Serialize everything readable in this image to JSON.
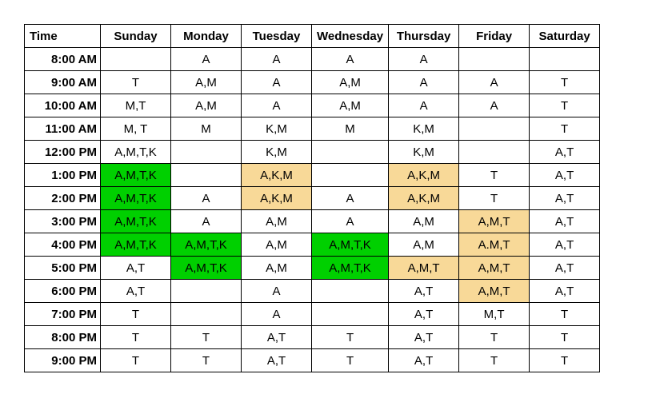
{
  "table": {
    "headers": [
      "Time",
      "Sunday",
      "Monday",
      "Tuesday",
      "Wednesday",
      "Thursday",
      "Friday",
      "Saturday"
    ],
    "colors": {
      "green": "#00d000",
      "tan": "#f8d998",
      "none": "#ffffff"
    },
    "rows": [
      {
        "time": "8:00 AM",
        "cells": [
          {
            "text": "",
            "bg": "none"
          },
          {
            "text": "A",
            "bg": "none"
          },
          {
            "text": "A",
            "bg": "none"
          },
          {
            "text": "A",
            "bg": "none"
          },
          {
            "text": "A",
            "bg": "none"
          },
          {
            "text": "",
            "bg": "none"
          },
          {
            "text": "",
            "bg": "none"
          }
        ]
      },
      {
        "time": "9:00 AM",
        "cells": [
          {
            "text": "T",
            "bg": "none"
          },
          {
            "text": "A,M",
            "bg": "none"
          },
          {
            "text": "A",
            "bg": "none"
          },
          {
            "text": "A,M",
            "bg": "none"
          },
          {
            "text": "A",
            "bg": "none"
          },
          {
            "text": "A",
            "bg": "none"
          },
          {
            "text": "T",
            "bg": "none"
          }
        ]
      },
      {
        "time": "10:00 AM",
        "cells": [
          {
            "text": "M,T",
            "bg": "none"
          },
          {
            "text": "A,M",
            "bg": "none"
          },
          {
            "text": "A",
            "bg": "none"
          },
          {
            "text": "A,M",
            "bg": "none"
          },
          {
            "text": "A",
            "bg": "none"
          },
          {
            "text": "A",
            "bg": "none"
          },
          {
            "text": "T",
            "bg": "none"
          }
        ]
      },
      {
        "time": "11:00 AM",
        "cells": [
          {
            "text": "M, T",
            "bg": "none"
          },
          {
            "text": "M",
            "bg": "none"
          },
          {
            "text": "K,M",
            "bg": "none"
          },
          {
            "text": "M",
            "bg": "none"
          },
          {
            "text": "K,M",
            "bg": "none"
          },
          {
            "text": "",
            "bg": "none"
          },
          {
            "text": "T",
            "bg": "none"
          }
        ]
      },
      {
        "time": "12:00 PM",
        "cells": [
          {
            "text": "A,M,T,K",
            "bg": "none"
          },
          {
            "text": "",
            "bg": "none"
          },
          {
            "text": "K,M",
            "bg": "none"
          },
          {
            "text": "",
            "bg": "none"
          },
          {
            "text": "K,M",
            "bg": "none"
          },
          {
            "text": "",
            "bg": "none"
          },
          {
            "text": "A,T",
            "bg": "none"
          }
        ]
      },
      {
        "time": "1:00 PM",
        "cells": [
          {
            "text": "A,M,T,K",
            "bg": "green"
          },
          {
            "text": "",
            "bg": "none"
          },
          {
            "text": "A,K,M",
            "bg": "tan"
          },
          {
            "text": "",
            "bg": "none"
          },
          {
            "text": "A,K,M",
            "bg": "tan"
          },
          {
            "text": "T",
            "bg": "none"
          },
          {
            "text": "A,T",
            "bg": "none"
          }
        ]
      },
      {
        "time": "2:00 PM",
        "cells": [
          {
            "text": "A,M,T,K",
            "bg": "green"
          },
          {
            "text": "A",
            "bg": "none"
          },
          {
            "text": "A,K,M",
            "bg": "tan"
          },
          {
            "text": "A",
            "bg": "none"
          },
          {
            "text": "A,K,M",
            "bg": "tan"
          },
          {
            "text": "T",
            "bg": "none"
          },
          {
            "text": "A,T",
            "bg": "none"
          }
        ]
      },
      {
        "time": "3:00 PM",
        "cells": [
          {
            "text": "A,M,T,K",
            "bg": "green"
          },
          {
            "text": "A",
            "bg": "none"
          },
          {
            "text": "A,M",
            "bg": "none"
          },
          {
            "text": "A",
            "bg": "none"
          },
          {
            "text": "A,M",
            "bg": "none"
          },
          {
            "text": "A,M,T",
            "bg": "tan"
          },
          {
            "text": "A,T",
            "bg": "none"
          }
        ]
      },
      {
        "time": "4:00 PM",
        "cells": [
          {
            "text": "A,M,T,K",
            "bg": "green"
          },
          {
            "text": "A,M,T,K",
            "bg": "green"
          },
          {
            "text": "A,M",
            "bg": "none"
          },
          {
            "text": "A,M,T,K",
            "bg": "green"
          },
          {
            "text": "A,M",
            "bg": "none"
          },
          {
            "text": "A.M,T",
            "bg": "tan"
          },
          {
            "text": "A,T",
            "bg": "none"
          }
        ]
      },
      {
        "time": "5:00 PM",
        "cells": [
          {
            "text": "A,T",
            "bg": "none"
          },
          {
            "text": "A,M,T,K",
            "bg": "green"
          },
          {
            "text": "A,M",
            "bg": "none"
          },
          {
            "text": "A,M,T,K",
            "bg": "green"
          },
          {
            "text": "A,M,T",
            "bg": "tan"
          },
          {
            "text": "A,M,T",
            "bg": "tan"
          },
          {
            "text": "A,T",
            "bg": "none"
          }
        ]
      },
      {
        "time": "6:00 PM",
        "cells": [
          {
            "text": "A,T",
            "bg": "none"
          },
          {
            "text": "",
            "bg": "none"
          },
          {
            "text": "A",
            "bg": "none"
          },
          {
            "text": "",
            "bg": "none"
          },
          {
            "text": "A,T",
            "bg": "none"
          },
          {
            "text": "A,M,T",
            "bg": "tan"
          },
          {
            "text": "A,T",
            "bg": "none"
          }
        ]
      },
      {
        "time": "7:00 PM",
        "cells": [
          {
            "text": "T",
            "bg": "none"
          },
          {
            "text": "",
            "bg": "none"
          },
          {
            "text": "A",
            "bg": "none"
          },
          {
            "text": "",
            "bg": "none"
          },
          {
            "text": "A,T",
            "bg": "none"
          },
          {
            "text": "M,T",
            "bg": "none"
          },
          {
            "text": "T",
            "bg": "none"
          }
        ]
      },
      {
        "time": "8:00 PM",
        "cells": [
          {
            "text": "T",
            "bg": "none"
          },
          {
            "text": "T",
            "bg": "none"
          },
          {
            "text": "A,T",
            "bg": "none"
          },
          {
            "text": "T",
            "bg": "none"
          },
          {
            "text": "A,T",
            "bg": "none"
          },
          {
            "text": "T",
            "bg": "none"
          },
          {
            "text": "T",
            "bg": "none"
          }
        ]
      },
      {
        "time": "9:00 PM",
        "cells": [
          {
            "text": "T",
            "bg": "none"
          },
          {
            "text": "T",
            "bg": "none"
          },
          {
            "text": "A,T",
            "bg": "none"
          },
          {
            "text": "T",
            "bg": "none"
          },
          {
            "text": "A,T",
            "bg": "none"
          },
          {
            "text": "T",
            "bg": "none"
          },
          {
            "text": "T",
            "bg": "none"
          }
        ]
      }
    ]
  }
}
